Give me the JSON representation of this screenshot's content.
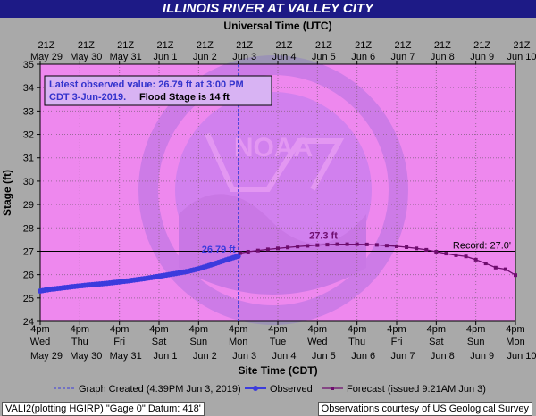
{
  "header": {
    "title": "ILLINOIS RIVER AT VALLEY CITY",
    "top_axis_title": "Universal Time (UTC)"
  },
  "footer": {
    "left_text": "VALI2(plotting HGIRP) \"Gage 0\" Datum: 418'",
    "right_text": "Observations courtesy of US Geological Survey"
  },
  "watermark": "NATIONAL OCEANIC AND ATMOSPHERIC ADMINISTRATION / U.S. DEPARTMENT OF COMMERCE / NOAA",
  "colors": {
    "title_bg": "#1d1a86",
    "plot_bg": "#ee88ee",
    "observed": "#3b3bdd",
    "forecast": "#6e0d6e",
    "frame_bg": "#a9a9a9",
    "info_text": "#3333cc"
  },
  "chart_data": {
    "type": "line",
    "title": "ILLINOIS RIVER AT VALLEY CITY",
    "ylabel": "Stage (ft)",
    "xlabel": "Site Time (CDT)",
    "x2label": "Universal Time (UTC)",
    "ylim": [
      24,
      35
    ],
    "yticks": [
      24,
      25,
      26,
      27,
      28,
      29,
      30,
      31,
      32,
      33,
      34,
      35
    ],
    "grid": true,
    "x_categories": [
      {
        "l1": "4pm",
        "l2": "Wed",
        "l3": "May 29"
      },
      {
        "l1": "4pm",
        "l2": "Thu",
        "l3": "May 30"
      },
      {
        "l1": "4pm",
        "l2": "Fri",
        "l3": "May 31"
      },
      {
        "l1": "4pm",
        "l2": "Sat",
        "l3": "Jun 1"
      },
      {
        "l1": "4pm",
        "l2": "Sun",
        "l3": "Jun 2"
      },
      {
        "l1": "4pm",
        "l2": "Mon",
        "l3": "Jun 3"
      },
      {
        "l1": "4pm",
        "l2": "Tue",
        "l3": "Jun 4"
      },
      {
        "l1": "4pm",
        "l2": "Wed",
        "l3": "Jun 5"
      },
      {
        "l1": "4pm",
        "l2": "Thu",
        "l3": "Jun 6"
      },
      {
        "l1": "4pm",
        "l2": "Fri",
        "l3": "Jun 7"
      },
      {
        "l1": "4pm",
        "l2": "Sat",
        "l3": "Jun 8"
      },
      {
        "l1": "4pm",
        "l2": "Sun",
        "l3": "Jun 9"
      },
      {
        "l1": "4pm",
        "l2": "Mon",
        "l3": "Jun 10"
      }
    ],
    "top_categories": [
      {
        "l1": "21Z",
        "l2": "May 29"
      },
      {
        "l1": "21Z",
        "l2": "May 30"
      },
      {
        "l1": "21Z",
        "l2": "May 31"
      },
      {
        "l1": "21Z",
        "l2": "Jun 1"
      },
      {
        "l1": "21Z",
        "l2": "Jun 2"
      },
      {
        "l1": "21Z",
        "l2": "Jun 3"
      },
      {
        "l1": "21Z",
        "l2": "Jun 4"
      },
      {
        "l1": "21Z",
        "l2": "Jun 5"
      },
      {
        "l1": "21Z",
        "l2": "Jun 6"
      },
      {
        "l1": "21Z",
        "l2": "Jun 7"
      },
      {
        "l1": "21Z",
        "l2": "Jun 8"
      },
      {
        "l1": "21Z",
        "l2": "Jun 9"
      },
      {
        "l1": "21Z",
        "l2": "Jun 10"
      }
    ],
    "record": {
      "value": 27.0,
      "label": "Record: 27.0'"
    },
    "graph_created_day": 5.0,
    "observed": {
      "name": "Observed",
      "points": [
        [
          0.0,
          25.3
        ],
        [
          0.25,
          25.37
        ],
        [
          0.5,
          25.42
        ],
        [
          0.75,
          25.47
        ],
        [
          1.0,
          25.52
        ],
        [
          1.25,
          25.56
        ],
        [
          1.5,
          25.6
        ],
        [
          1.75,
          25.64
        ],
        [
          2.0,
          25.69
        ],
        [
          2.25,
          25.74
        ],
        [
          2.5,
          25.8
        ],
        [
          2.75,
          25.86
        ],
        [
          3.0,
          25.93
        ],
        [
          3.25,
          26.0
        ],
        [
          3.5,
          26.07
        ],
        [
          3.75,
          26.15
        ],
        [
          4.0,
          26.25
        ],
        [
          4.25,
          26.38
        ],
        [
          4.5,
          26.52
        ],
        [
          4.75,
          26.66
        ],
        [
          5.0,
          26.79
        ]
      ],
      "label": "26.79 ft"
    },
    "forecast": {
      "name": "Forecast (issued 9:21AM Jun 3)",
      "points": [
        [
          5.05,
          26.92
        ],
        [
          5.25,
          26.98
        ],
        [
          5.5,
          27.03
        ],
        [
          5.75,
          27.08
        ],
        [
          6.0,
          27.12
        ],
        [
          6.25,
          27.16
        ],
        [
          6.5,
          27.2
        ],
        [
          6.75,
          27.23
        ],
        [
          7.0,
          27.26
        ],
        [
          7.25,
          27.28
        ],
        [
          7.5,
          27.3
        ],
        [
          7.75,
          27.3
        ],
        [
          8.0,
          27.3
        ],
        [
          8.25,
          27.29
        ],
        [
          8.5,
          27.27
        ],
        [
          8.75,
          27.24
        ],
        [
          9.0,
          27.21
        ],
        [
          9.25,
          27.17
        ],
        [
          9.5,
          27.12
        ],
        [
          9.75,
          27.06
        ],
        [
          10.0,
          26.98
        ],
        [
          10.25,
          26.9
        ],
        [
          10.5,
          26.83
        ],
        [
          10.75,
          26.78
        ],
        [
          11.0,
          26.64
        ],
        [
          11.25,
          26.48
        ],
        [
          11.5,
          26.3
        ],
        [
          11.75,
          26.23
        ],
        [
          12.0,
          25.98
        ]
      ],
      "peak_label": "27.3 ft"
    },
    "info_box": {
      "line1": "Latest observed value: 26.79 ft at 3:00 PM",
      "line2": "CDT 3-Jun-2019.",
      "line2b": "Flood Stage is 14 ft"
    },
    "legend": {
      "graph_created": "Graph Created (4:39PM Jun 3, 2019)",
      "observed": "Observed",
      "forecast": "Forecast (issued 9:21AM Jun 3)"
    }
  }
}
